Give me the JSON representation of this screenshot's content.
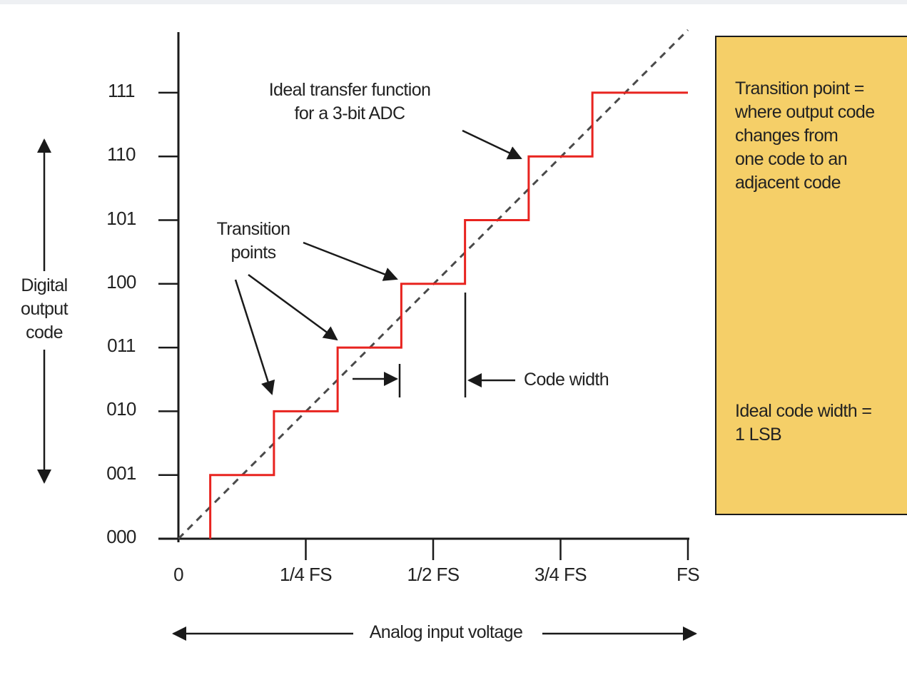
{
  "chart_data": {
    "type": "line",
    "title": "Ideal transfer function for a 3-bit ADC",
    "xlabel": "Analog input voltage",
    "ylabel": "Digital output code",
    "x_ticks": [
      "0",
      "1/4 FS",
      "1/2 FS",
      "3/4 FS",
      "FS"
    ],
    "y_ticks": [
      "000",
      "001",
      "010",
      "011",
      "100",
      "101",
      "110",
      "111"
    ],
    "series": [
      {
        "style": "step",
        "color": "#e8231f",
        "transitions_fs": [
          0.0625,
          0.1875,
          0.3125,
          0.4375,
          0.5625,
          0.6875,
          0.8125
        ],
        "codes": [
          0,
          1,
          2,
          3,
          4,
          5,
          6,
          7
        ],
        "x_end_fs": 1.0
      },
      {
        "style": "dashed",
        "color": "#4a4a4a",
        "x": [
          0,
          1.0
        ],
        "y": [
          0,
          8
        ]
      }
    ],
    "grid": false
  },
  "annotations": {
    "ideal_line1": "Ideal transfer function",
    "ideal_line2": "for a 3-bit ADC",
    "transition_line1": "Transition",
    "transition_line2": "points",
    "code_width": "Code width"
  },
  "ylabel_lines": [
    "Digital",
    "output",
    "code"
  ],
  "info_box": {
    "color": "#f5cf68",
    "transition_lines": [
      "Transition point =",
      "where output code",
      "changes from",
      "one code to an",
      "adjacent code"
    ],
    "width_lines": [
      "Ideal code width =",
      "1 LSB"
    ]
  }
}
